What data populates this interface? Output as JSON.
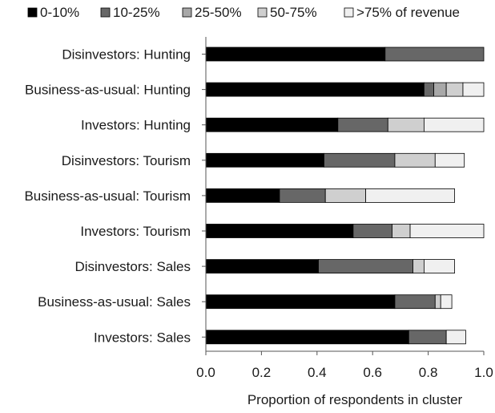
{
  "chart_data": {
    "type": "bar",
    "orientation": "horizontal",
    "stacked": true,
    "title": "",
    "xlabel": "Proportion of respondents in cluster",
    "ylabel": "",
    "xlim": [
      0,
      1
    ],
    "xticks": [
      "0.0",
      "0.2",
      "0.4",
      "0.6",
      "0.8",
      "1.0"
    ],
    "grid": false,
    "legend_position": "top",
    "categories": [
      "Disinvestors: Hunting",
      "Business-as-usual: Hunting",
      "Investors: Hunting",
      "Disinvestors: Tourism",
      "Business-as-usual: Tourism",
      "Investors: Tourism",
      "Disinvestors: Sales",
      "Business-as-usual: Sales",
      "Investors: Sales"
    ],
    "series": [
      {
        "name": "0-10%",
        "color": "#000000",
        "values": [
          0.645,
          0.785,
          0.475,
          0.425,
          0.265,
          0.53,
          0.405,
          0.68,
          0.73
        ]
      },
      {
        "name": "10-25%",
        "color": "#676767",
        "values": [
          0.355,
          0.035,
          0.18,
          0.255,
          0.165,
          0.14,
          0.34,
          0.145,
          0.135
        ]
      },
      {
        "name": "25-50%",
        "color": "#a8a8a8",
        "values": [
          0.0,
          0.045,
          0.0,
          0.0,
          0.0,
          0.0,
          0.0,
          0.0,
          0.0
        ]
      },
      {
        "name": "50-75%",
        "color": "#cfcfcf",
        "values": [
          0.0,
          0.06,
          0.13,
          0.145,
          0.145,
          0.065,
          0.04,
          0.02,
          0.0
        ]
      },
      {
        "name": ">75% of revenue",
        "color": "#f0f0f0",
        "values": [
          0.0,
          0.075,
          0.215,
          0.105,
          0.32,
          0.265,
          0.11,
          0.04,
          0.07
        ]
      }
    ]
  }
}
